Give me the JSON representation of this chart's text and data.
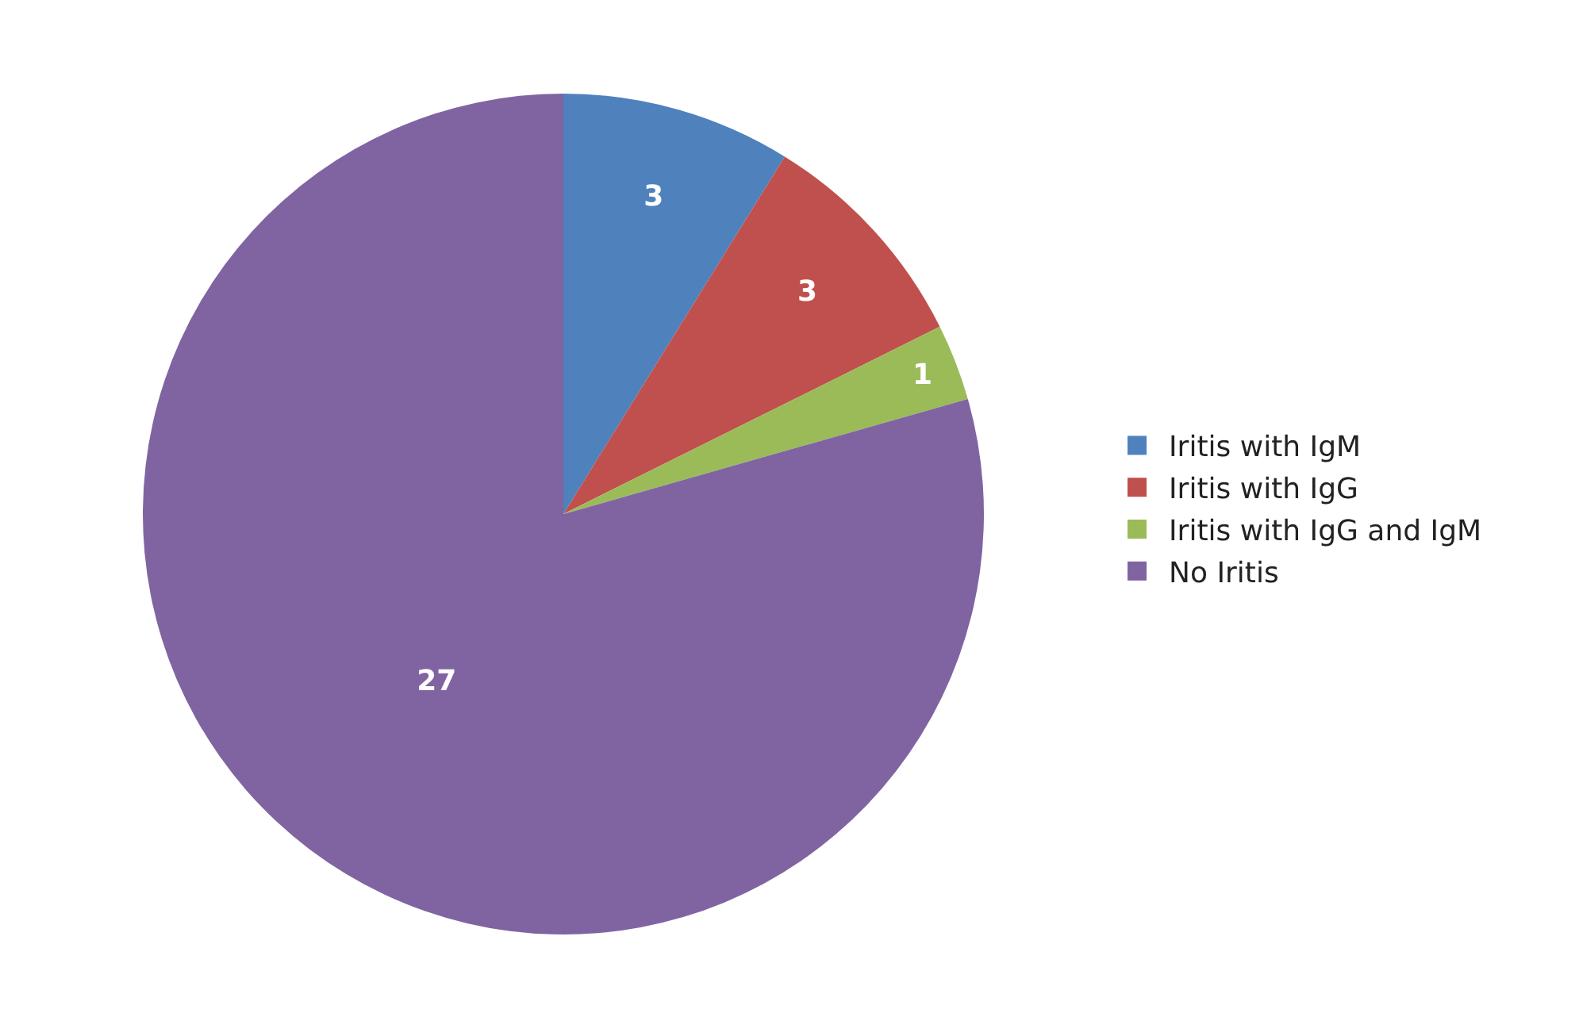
{
  "chart_data": {
    "type": "pie",
    "categories": [
      "Iritis with IgM",
      "Iritis with IgG",
      "Iritis with IgG and IgM",
      "No Iritis"
    ],
    "values": [
      3,
      3,
      1,
      27
    ],
    "colors": [
      "#4f81bd",
      "#c0504d",
      "#9bbb59",
      "#8064a2"
    ],
    "data_labels": true,
    "legend": "right"
  }
}
